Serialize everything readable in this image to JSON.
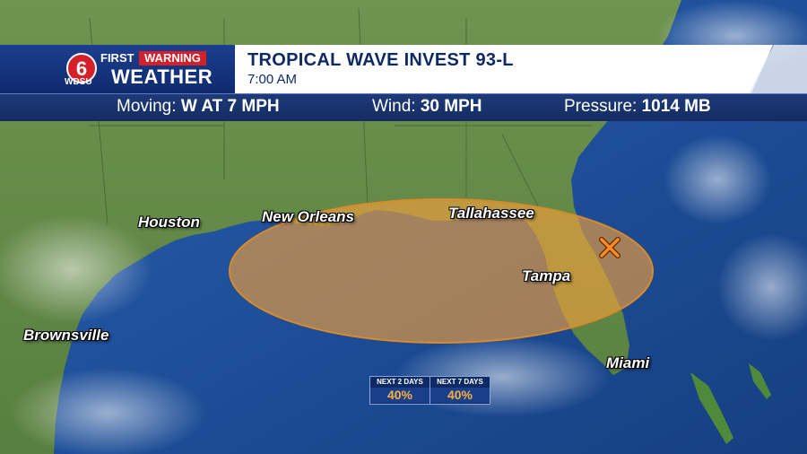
{
  "branding": {
    "logo_number": "6",
    "station": "WDSU",
    "first_label": "FIRST",
    "warning_label": "WARNING",
    "weather_label": "WEATHER"
  },
  "header": {
    "title": "TROPICAL WAVE INVEST 93-L",
    "time": "7:00 AM"
  },
  "info_bar": {
    "moving_label": "Moving:",
    "moving_value": "W AT 7 MPH",
    "wind_label": "Wind:",
    "wind_value": "30 MPH",
    "pressure_label": "Pressure:",
    "pressure_value": "1014 MB"
  },
  "cities": {
    "houston": "Houston",
    "new_orleans": "New Orleans",
    "tallahassee": "Tallahassee",
    "tampa": "Tampa",
    "brownsville": "Brownsville",
    "miami": "Miami"
  },
  "outlook": {
    "next_2_days_label": "NEXT 2 DAYS",
    "next_2_days_value": "40%",
    "next_7_days_label": "NEXT 7 DAYS",
    "next_7_days_value": "40%"
  },
  "colors": {
    "land": "#5e8a45",
    "water": "#1d4f9a",
    "outlook_area": "#f7a23a",
    "header_blue": "#0d2a66",
    "warning_red": "#d4202a"
  },
  "icons": {
    "disturbance_marker": "orange-x-icon"
  }
}
